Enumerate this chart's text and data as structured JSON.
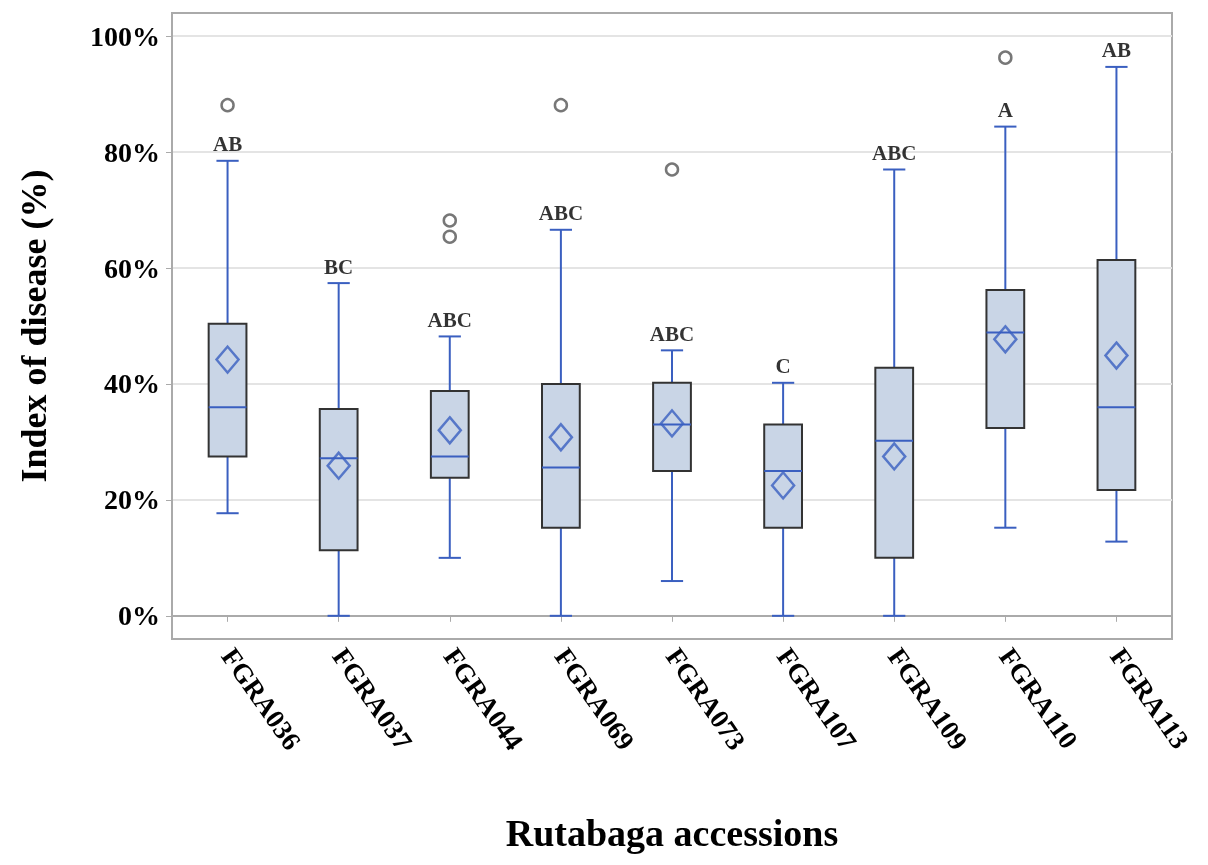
{
  "chart_data": {
    "type": "box",
    "xlabel": "Rutabaga accessions",
    "ylabel": "Index of disease (%)",
    "categories": [
      "FGRA036",
      "FGRA037",
      "FGRA044",
      "FGRA069",
      "FGRA073",
      "FGRA107",
      "FGRA109",
      "FGRA110",
      "FGRA113"
    ],
    "color": "#c9d5e6",
    "boxes": [
      {
        "low": 17.7,
        "q1": 27.5,
        "median": 36.0,
        "q3": 50.4,
        "high": 78.5,
        "mean": 44.2,
        "outliers": [
          88.1
        ]
      },
      {
        "low": 0,
        "q1": 11.3,
        "median": 27.2,
        "q3": 35.7,
        "high": 57.4,
        "mean": 25.9
      },
      {
        "low": 10.0,
        "q1": 23.8,
        "median": 27.5,
        "q3": 38.8,
        "high": 48.2,
        "mean": 32.0,
        "outliers": [
          65.4,
          68.2
        ]
      },
      {
        "low": 0,
        "q1": 15.2,
        "median": 25.6,
        "q3": 40.0,
        "high": 66.6,
        "mean": 30.8,
        "outliers": [
          88.1
        ]
      },
      {
        "low": 6.0,
        "q1": 25.0,
        "median": 33.0,
        "q3": 40.2,
        "high": 45.8,
        "mean": 33.2,
        "outliers": [
          77.0
        ]
      },
      {
        "low": 0,
        "q1": 15.2,
        "median": 25.0,
        "q3": 33.0,
        "high": 40.2,
        "mean": 22.5
      },
      {
        "low": 0,
        "q1": 10.0,
        "median": 30.2,
        "q3": 42.8,
        "high": 77.0,
        "mean": 27.5
      },
      {
        "low": 15.2,
        "q1": 32.4,
        "median": 48.9,
        "q3": 56.2,
        "high": 84.4,
        "mean": 47.7,
        "outliers": [
          96.3
        ]
      },
      {
        "low": 12.8,
        "q1": 21.7,
        "median": 36.0,
        "q3": 61.4,
        "high": 94.7,
        "mean": 44.9
      }
    ],
    "ylim": [
      -4,
      104
    ],
    "yticks": [
      {
        "value": 0,
        "label": "0%"
      },
      {
        "value": 20,
        "label": "20%"
      },
      {
        "value": 40,
        "label": "40%"
      },
      {
        "value": 60,
        "label": "60%"
      },
      {
        "value": 80,
        "label": "80%"
      },
      {
        "value": 100,
        "label": "100%"
      }
    ],
    "grid": "y",
    "annotations": [
      {
        "text": "AB",
        "x": "FGRA036",
        "y": 78.5
      },
      {
        "text": "BC",
        "x": "FGRA037",
        "y": 57.4
      },
      {
        "text": "ABC",
        "x": "FGRA044",
        "y": 48.2
      },
      {
        "text": "ABC",
        "x": "FGRA069",
        "y": 66.6
      },
      {
        "text": "ABC",
        "x": "FGRA073",
        "y": 45.8
      },
      {
        "text": "C",
        "x": "FGRA107",
        "y": 40.2
      },
      {
        "text": "ABC",
        "x": "FGRA109",
        "y": 77.0
      },
      {
        "text": "A",
        "x": "FGRA110",
        "y": 84.4
      },
      {
        "text": "AB",
        "x": "FGRA113",
        "y": 94.7
      }
    ]
  }
}
